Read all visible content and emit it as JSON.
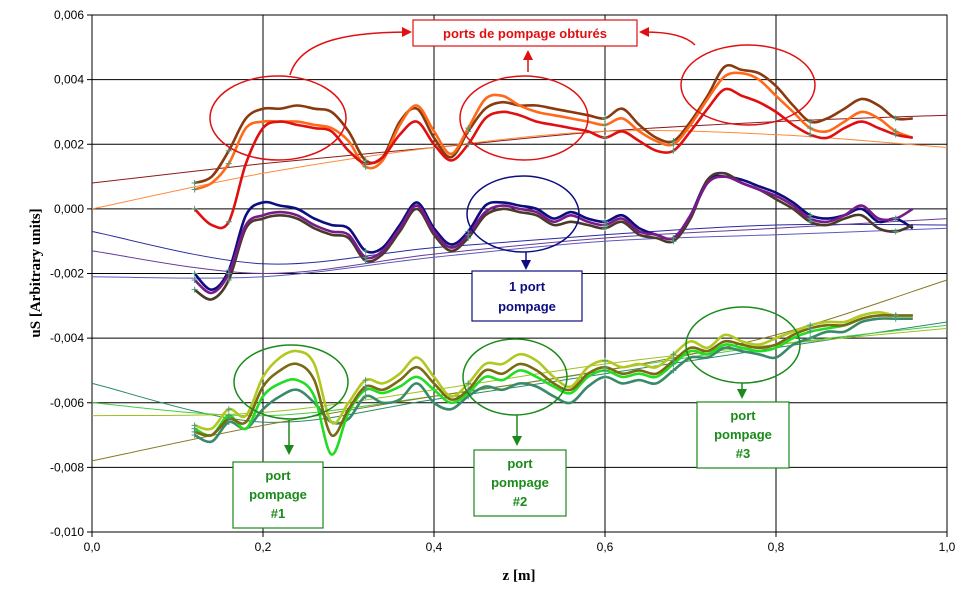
{
  "chart_data": {
    "type": "line",
    "title": "",
    "xlabel": "z [m]",
    "ylabel": "uS [Arbitrary units]",
    "xlim": [
      0,
      1
    ],
    "ylim": [
      -0.01,
      0.006
    ],
    "x_ticks": [
      "0,0",
      "0,2",
      "0,4",
      "0,6",
      "0,8",
      "1,0"
    ],
    "y_ticks": [
      "-0,010",
      "-0,008",
      "-0,006",
      "-0,004",
      "-0,002",
      "0,000",
      "0,002",
      "0,004",
      "0,006"
    ],
    "grid": true,
    "legend": "none",
    "x": [
      0.12,
      0.14,
      0.16,
      0.18,
      0.2,
      0.22,
      0.24,
      0.26,
      0.28,
      0.3,
      0.32,
      0.34,
      0.36,
      0.38,
      0.4,
      0.42,
      0.44,
      0.46,
      0.48,
      0.5,
      0.52,
      0.54,
      0.56,
      0.58,
      0.6,
      0.62,
      0.64,
      0.66,
      0.68,
      0.7,
      0.72,
      0.74,
      0.76,
      0.78,
      0.8,
      0.82,
      0.84,
      0.86,
      0.88,
      0.9,
      0.92,
      0.94,
      0.96
    ],
    "series": [
      {
        "color": "#8b3a0f",
        "values": [
          0.0008,
          0.001,
          0.0018,
          0.0028,
          0.0031,
          0.0031,
          0.0032,
          0.0031,
          0.003,
          0.0024,
          0.0015,
          0.0016,
          0.0027,
          0.0031,
          0.0022,
          0.0016,
          0.0024,
          0.0031,
          0.0033,
          0.0032,
          0.0032,
          0.0031,
          0.003,
          0.0029,
          0.0028,
          0.0031,
          0.0026,
          0.0022,
          0.0021,
          0.0027,
          0.0035,
          0.0044,
          0.0043,
          0.0042,
          0.0038,
          0.0032,
          0.0027,
          0.0028,
          0.0031,
          0.0034,
          0.0032,
          0.0028,
          0.0028
        ]
      },
      {
        "color": "#ff6a1a",
        "values": [
          0.0006,
          0.0008,
          0.0014,
          0.0025,
          0.0027,
          0.0027,
          0.0027,
          0.0026,
          0.0025,
          0.0021,
          0.0013,
          0.0015,
          0.0026,
          0.0032,
          0.0024,
          0.0017,
          0.0025,
          0.0034,
          0.0035,
          0.0032,
          0.003,
          0.0029,
          0.0028,
          0.0027,
          0.0026,
          0.0028,
          0.0024,
          0.0021,
          0.002,
          0.0026,
          0.0034,
          0.0041,
          0.0042,
          0.004,
          0.0035,
          0.003,
          0.0025,
          0.0024,
          0.0027,
          0.003,
          0.0028,
          0.0024,
          0.0022
        ]
      },
      {
        "color": "#e01010",
        "values": [
          0.0,
          -0.0005,
          -0.0004,
          0.0014,
          0.0025,
          0.0027,
          0.0026,
          0.0025,
          0.0024,
          0.0018,
          0.0014,
          0.0016,
          0.0023,
          0.0027,
          0.002,
          0.0015,
          0.002,
          0.0028,
          0.003,
          0.0029,
          0.0027,
          0.0026,
          0.0025,
          0.0024,
          0.0022,
          0.0024,
          0.0021,
          0.0018,
          0.0018,
          0.0024,
          0.0031,
          0.0037,
          0.0035,
          0.0033,
          0.003,
          0.0026,
          0.0023,
          0.0022,
          0.0025,
          0.0027,
          0.0025,
          0.0023,
          0.0022
        ]
      },
      {
        "color": "#0d0d80",
        "values": [
          -0.002,
          -0.0025,
          -0.0019,
          -0.0002,
          0.0002,
          0.0001,
          0.0,
          -0.0003,
          -0.0005,
          -0.0006,
          -0.0013,
          -0.0012,
          -0.0005,
          0.0002,
          -0.0006,
          -0.0011,
          -0.0007,
          0.0001,
          0.0002,
          0.0001,
          0.0,
          -0.0003,
          -0.0001,
          -0.0003,
          -0.0004,
          -0.0002,
          -0.0006,
          -0.0008,
          -0.0009,
          -0.0002,
          0.0009,
          0.001,
          0.0009,
          0.0007,
          0.0005,
          0.0002,
          -0.0002,
          -0.0003,
          -0.0002,
          0.0,
          -0.0004,
          -0.0003,
          -0.0006
        ]
      },
      {
        "color": "#4a3a2a",
        "values": [
          -0.0025,
          -0.0028,
          -0.0022,
          -0.0006,
          -0.0003,
          -0.0002,
          -0.0003,
          -0.0006,
          -0.0008,
          -0.0009,
          -0.0016,
          -0.0014,
          -0.0007,
          0.0,
          -0.0008,
          -0.0013,
          -0.0009,
          -0.0002,
          0.0,
          -0.0001,
          -0.0002,
          -0.0005,
          -0.0004,
          -0.0005,
          -0.0006,
          -0.0004,
          -0.0008,
          -0.0009,
          -0.001,
          -0.0003,
          0.0009,
          0.0011,
          0.0008,
          0.0006,
          0.0003,
          0.0,
          -0.0004,
          -0.0005,
          -0.0003,
          -0.0002,
          -0.0006,
          -0.0007,
          -0.0005
        ]
      },
      {
        "color": "#7a1a8a",
        "values": [
          -0.0022,
          -0.0026,
          -0.002,
          -0.0005,
          -0.0002,
          -0.0001,
          -0.0002,
          -0.0005,
          -0.0007,
          -0.0008,
          -0.0015,
          -0.0013,
          -0.0006,
          0.0001,
          -0.0007,
          -0.0012,
          -0.0008,
          -0.0001,
          0.0001,
          0.0,
          -0.0001,
          -0.0004,
          -0.0002,
          -0.0004,
          -0.0005,
          -0.0003,
          -0.0007,
          -0.0008,
          -0.0009,
          -0.0002,
          0.0008,
          0.001,
          0.0008,
          0.0006,
          0.0004,
          0.0001,
          -0.0003,
          -0.0004,
          -0.0002,
          0.0001,
          -0.0003,
          -0.0003,
          0.0
        ]
      },
      {
        "color": "#3a8a6a",
        "values": [
          -0.007,
          -0.0072,
          -0.0066,
          -0.0068,
          -0.0062,
          -0.0058,
          -0.0056,
          -0.006,
          -0.0066,
          -0.0065,
          -0.0058,
          -0.006,
          -0.0059,
          -0.0054,
          -0.006,
          -0.0062,
          -0.0058,
          -0.0055,
          -0.0056,
          -0.0054,
          -0.0055,
          -0.0058,
          -0.006,
          -0.0055,
          -0.0052,
          -0.0054,
          -0.0053,
          -0.0054,
          -0.005,
          -0.0046,
          -0.0046,
          -0.0043,
          -0.0044,
          -0.0045,
          -0.0046,
          -0.0042,
          -0.004,
          -0.0038,
          -0.0038,
          -0.0035,
          -0.0034,
          -0.0034,
          -0.0034
        ]
      },
      {
        "color": "#22dd22",
        "values": [
          -0.0068,
          -0.007,
          -0.0064,
          -0.0068,
          -0.0058,
          -0.0054,
          -0.0053,
          -0.0058,
          -0.0076,
          -0.0063,
          -0.0056,
          -0.0057,
          -0.0055,
          -0.0052,
          -0.0056,
          -0.006,
          -0.0057,
          -0.0052,
          -0.0053,
          -0.005,
          -0.0052,
          -0.0055,
          -0.0057,
          -0.0052,
          -0.005,
          -0.0052,
          -0.0051,
          -0.0052,
          -0.0048,
          -0.0044,
          -0.0045,
          -0.0042,
          -0.0043,
          -0.0044,
          -0.0043,
          -0.004,
          -0.0038,
          -0.0037,
          -0.0036,
          -0.0034,
          -0.0033,
          -0.0033,
          -0.0033
        ]
      },
      {
        "color": "#b0c820",
        "values": [
          -0.0067,
          -0.0068,
          -0.0062,
          -0.0064,
          -0.0052,
          -0.0046,
          -0.0044,
          -0.0048,
          -0.0066,
          -0.006,
          -0.0053,
          -0.0054,
          -0.0051,
          -0.0046,
          -0.0052,
          -0.0058,
          -0.0054,
          -0.0048,
          -0.0048,
          -0.0045,
          -0.0047,
          -0.0052,
          -0.0055,
          -0.0049,
          -0.0047,
          -0.0049,
          -0.0048,
          -0.0049,
          -0.0045,
          -0.0041,
          -0.0043,
          -0.0039,
          -0.0041,
          -0.0042,
          -0.004,
          -0.0038,
          -0.0036,
          -0.0035,
          -0.0035,
          -0.0033,
          -0.0032,
          -0.0033,
          -0.0033
        ]
      },
      {
        "color": "#7a6a10",
        "values": [
          -0.0069,
          -0.007,
          -0.0065,
          -0.0066,
          -0.0055,
          -0.005,
          -0.0048,
          -0.0053,
          -0.007,
          -0.0062,
          -0.0055,
          -0.0056,
          -0.0053,
          -0.0049,
          -0.0054,
          -0.0059,
          -0.0056,
          -0.005,
          -0.0051,
          -0.0048,
          -0.005,
          -0.0054,
          -0.0056,
          -0.0051,
          -0.0049,
          -0.0051,
          -0.005,
          -0.0051,
          -0.0047,
          -0.0043,
          -0.0044,
          -0.0041,
          -0.0042,
          -0.0043,
          -0.0042,
          -0.0039,
          -0.0037,
          -0.0036,
          -0.0036,
          -0.0034,
          -0.0033,
          -0.0033,
          -0.0033
        ]
      }
    ],
    "trend_series": [
      {
        "color": "#8b1a1a",
        "x": [
          0,
          0.2,
          0.4,
          0.6,
          0.8,
          1.0
        ],
        "values": [
          0.0008,
          0.0014,
          0.0019,
          0.0024,
          0.0027,
          0.0029
        ]
      },
      {
        "color": "#ff8a3a",
        "x": [
          0,
          0.2,
          0.4,
          0.6,
          0.8,
          1.0
        ],
        "values": [
          0.0,
          0.0011,
          0.0019,
          0.0024,
          0.0023,
          0.0019
        ]
      },
      {
        "color": "#2a2aa0",
        "x": [
          0,
          0.2,
          0.4,
          0.6,
          0.8,
          1.0
        ],
        "values": [
          -0.0007,
          -0.0017,
          -0.0012,
          -0.0008,
          -0.0005,
          -0.0005
        ]
      },
      {
        "color": "#6a3a9a",
        "x": [
          0,
          0.2,
          0.4,
          0.6,
          0.8,
          1.0
        ],
        "values": [
          -0.0013,
          -0.002,
          -0.0014,
          -0.0009,
          -0.0006,
          -0.0003
        ]
      },
      {
        "color": "#5a5ac0",
        "x": [
          0,
          0.2,
          0.4,
          0.6,
          0.8,
          1.0
        ],
        "values": [
          -0.0021,
          -0.0021,
          -0.0015,
          -0.001,
          -0.0008,
          -0.0006
        ]
      },
      {
        "color": "#2a8a6a",
        "x": [
          0,
          0.2,
          0.4,
          0.6,
          0.8,
          1.0
        ],
        "values": [
          -0.0054,
          -0.0066,
          -0.0059,
          -0.0051,
          -0.0043,
          -0.0035
        ]
      },
      {
        "color": "#44cc44",
        "x": [
          0,
          0.2,
          0.4,
          0.6,
          0.8,
          1.0
        ],
        "values": [
          -0.006,
          -0.0064,
          -0.0058,
          -0.005,
          -0.0042,
          -0.0036
        ]
      },
      {
        "color": "#a0c020",
        "x": [
          0,
          0.2,
          0.4,
          0.6,
          0.8,
          1.0
        ],
        "values": [
          -0.0064,
          -0.0063,
          -0.0056,
          -0.0048,
          -0.0042,
          -0.0037
        ]
      },
      {
        "color": "#8a7a20",
        "x": [
          0,
          0.2,
          0.4,
          0.6,
          0.8,
          1.0
        ],
        "values": [
          -0.0078,
          -0.0067,
          -0.0058,
          -0.005,
          -0.0039,
          -0.0022
        ]
      }
    ],
    "annotations": [
      {
        "text": "ports de pompage obturés",
        "color": "#e01010"
      },
      {
        "text": "1 port pompage",
        "color": "#0d0d80"
      },
      {
        "text": "port pompage #1",
        "color": "#1a8a1a"
      },
      {
        "text": "port pompage #2",
        "color": "#1a8a1a"
      },
      {
        "text": "port pompage #3",
        "color": "#1a8a1a"
      }
    ]
  }
}
